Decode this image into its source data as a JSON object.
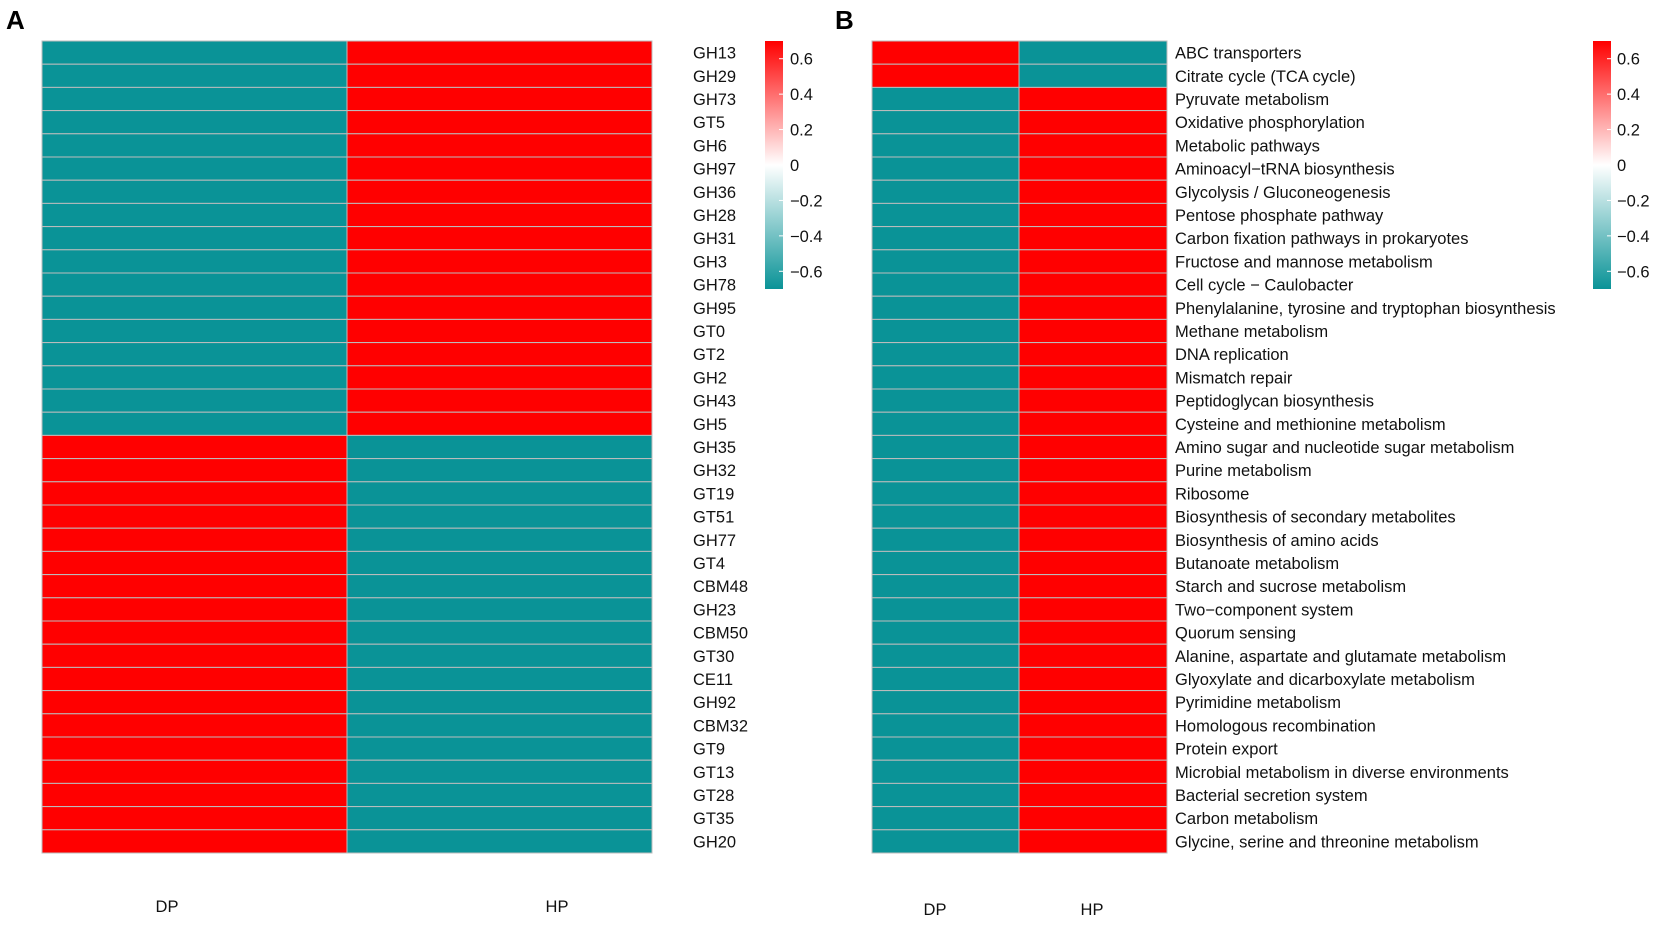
{
  "colors": {
    "high": "#ff0000",
    "mid": "#ffffff",
    "low": "#0a9397",
    "grid": "#bdbdbd"
  },
  "chart_data": [
    {
      "type": "heatmap",
      "panel": "A",
      "columns": [
        "DP",
        "HP"
      ],
      "rows": [
        "GH13",
        "GH29",
        "GH73",
        "GT5",
        "GH6",
        "GH97",
        "GH36",
        "GH28",
        "GH31",
        "GH3",
        "GH78",
        "GH95",
        "GT0",
        "GT2",
        "GH2",
        "GH43",
        "GH5",
        "GH35",
        "GH32",
        "GT19",
        "GT51",
        "GH77",
        "GT4",
        "CBM48",
        "GH23",
        "CBM50",
        "GT30",
        "CE11",
        "GH92",
        "CBM32",
        "GT9",
        "GT13",
        "GT28",
        "GT35",
        "GH20"
      ],
      "values": [
        [
          -0.7,
          0.7
        ],
        [
          -0.7,
          0.7
        ],
        [
          -0.7,
          0.7
        ],
        [
          -0.7,
          0.7
        ],
        [
          -0.7,
          0.7
        ],
        [
          -0.7,
          0.7
        ],
        [
          -0.7,
          0.7
        ],
        [
          -0.7,
          0.7
        ],
        [
          -0.7,
          0.7
        ],
        [
          -0.7,
          0.7
        ],
        [
          -0.7,
          0.7
        ],
        [
          -0.7,
          0.7
        ],
        [
          -0.7,
          0.7
        ],
        [
          -0.7,
          0.7
        ],
        [
          -0.7,
          0.7
        ],
        [
          -0.7,
          0.7
        ],
        [
          -0.7,
          0.7
        ],
        [
          0.7,
          -0.7
        ],
        [
          0.7,
          -0.7
        ],
        [
          0.7,
          -0.7
        ],
        [
          0.7,
          -0.7
        ],
        [
          0.7,
          -0.7
        ],
        [
          0.7,
          -0.7
        ],
        [
          0.7,
          -0.7
        ],
        [
          0.7,
          -0.7
        ],
        [
          0.7,
          -0.7
        ],
        [
          0.7,
          -0.7
        ],
        [
          0.7,
          -0.7
        ],
        [
          0.7,
          -0.7
        ],
        [
          0.7,
          -0.7
        ],
        [
          0.7,
          -0.7
        ],
        [
          0.7,
          -0.7
        ],
        [
          0.7,
          -0.7
        ],
        [
          0.7,
          -0.7
        ],
        [
          0.7,
          -0.7
        ]
      ],
      "color_range": [
        -0.7,
        0.7
      ],
      "colorbar_ticks": [
        0.6,
        0.4,
        0.2,
        0,
        -0.2,
        -0.4,
        -0.6
      ],
      "colorbar_tick_labels": [
        "0.6",
        "0.4",
        "0.2",
        "0",
        "−0.2",
        "−0.4",
        "−0.6"
      ]
    },
    {
      "type": "heatmap",
      "panel": "B",
      "columns": [
        "DP",
        "HP"
      ],
      "rows": [
        "ABC transporters",
        "Citrate cycle (TCA cycle)",
        "Pyruvate metabolism",
        "Oxidative phosphorylation",
        "Metabolic pathways",
        "Aminoacyl−tRNA biosynthesis",
        "Glycolysis / Gluconeogenesis",
        "Pentose phosphate pathway",
        "Carbon fixation pathways in prokaryotes",
        "Fructose and mannose metabolism",
        "Cell cycle − Caulobacter",
        "Phenylalanine, tyrosine and tryptophan biosynthesis",
        "Methane metabolism",
        "DNA replication",
        "Mismatch repair",
        "Peptidoglycan biosynthesis",
        "Cysteine and methionine metabolism",
        "Amino sugar and nucleotide sugar metabolism",
        "Purine metabolism",
        "Ribosome",
        "Biosynthesis of secondary metabolites",
        "Biosynthesis of amino acids",
        "Butanoate metabolism",
        "Starch and sucrose metabolism",
        "Two−component system",
        "Quorum sensing",
        "Alanine, aspartate and glutamate metabolism",
        "Glyoxylate and dicarboxylate metabolism",
        "Pyrimidine metabolism",
        "Homologous recombination",
        "Protein export",
        "Microbial metabolism in diverse environments",
        "Bacterial secretion system",
        "Carbon metabolism",
        "Glycine, serine and threonine metabolism"
      ],
      "values": [
        [
          0.7,
          -0.7
        ],
        [
          0.7,
          -0.7
        ],
        [
          -0.7,
          0.7
        ],
        [
          -0.7,
          0.7
        ],
        [
          -0.7,
          0.7
        ],
        [
          -0.7,
          0.7
        ],
        [
          -0.7,
          0.7
        ],
        [
          -0.7,
          0.7
        ],
        [
          -0.7,
          0.7
        ],
        [
          -0.7,
          0.7
        ],
        [
          -0.7,
          0.7
        ],
        [
          -0.7,
          0.7
        ],
        [
          -0.7,
          0.7
        ],
        [
          -0.7,
          0.7
        ],
        [
          -0.7,
          0.7
        ],
        [
          -0.7,
          0.7
        ],
        [
          -0.7,
          0.7
        ],
        [
          -0.7,
          0.7
        ],
        [
          -0.7,
          0.7
        ],
        [
          -0.7,
          0.7
        ],
        [
          -0.7,
          0.7
        ],
        [
          -0.7,
          0.7
        ],
        [
          -0.7,
          0.7
        ],
        [
          -0.7,
          0.7
        ],
        [
          -0.7,
          0.7
        ],
        [
          -0.7,
          0.7
        ],
        [
          -0.7,
          0.7
        ],
        [
          -0.7,
          0.7
        ],
        [
          -0.7,
          0.7
        ],
        [
          -0.7,
          0.7
        ],
        [
          -0.7,
          0.7
        ],
        [
          -0.7,
          0.7
        ],
        [
          -0.7,
          0.7
        ],
        [
          -0.7,
          0.7
        ],
        [
          -0.7,
          0.7
        ]
      ],
      "color_range": [
        -0.7,
        0.7
      ],
      "colorbar_ticks": [
        0.6,
        0.4,
        0.2,
        0,
        -0.2,
        -0.4,
        -0.6
      ],
      "colorbar_tick_labels": [
        "0.6",
        "0.4",
        "0.2",
        "0",
        "−0.2",
        "−0.4",
        "−0.6"
      ]
    }
  ]
}
